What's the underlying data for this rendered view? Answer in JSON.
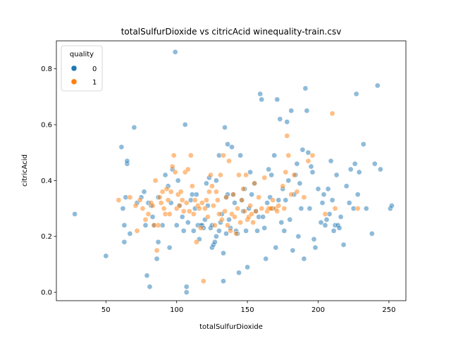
{
  "chart_data": {
    "type": "scatter",
    "title": "totalSulfurDioxide vs citricAcid winequality-train.csv",
    "xlabel": "totalSulfurDioxide",
    "ylabel": "citricAcid",
    "xlim": [
      15,
      262
    ],
    "ylim": [
      -0.03,
      0.9
    ],
    "xticks": [
      50,
      100,
      150,
      200,
      250
    ],
    "yticks": [
      0.0,
      0.2,
      0.4,
      0.6,
      0.8
    ],
    "xtick_labels": [
      "50",
      "100",
      "150",
      "200",
      "250"
    ],
    "ytick_labels": [
      "0.0",
      "0.2",
      "0.4",
      "0.6",
      "0.8"
    ],
    "grid": false,
    "legend": {
      "title": "quality",
      "placement": "top-left",
      "entries": [
        "0",
        "1"
      ]
    },
    "series": [
      {
        "name": "0",
        "color": "#1f77b4",
        "points": [
          [
            28,
            0.28
          ],
          [
            50,
            0.13
          ],
          [
            61,
            0.52
          ],
          [
            62,
            0.3
          ],
          [
            63,
            0.24
          ],
          [
            63,
            0.18
          ],
          [
            64,
            0.34
          ],
          [
            65,
            0.46
          ],
          [
            65,
            0.47
          ],
          [
            67,
            0.21
          ],
          [
            70,
            0.59
          ],
          [
            72,
            0.32
          ],
          [
            75,
            0.34
          ],
          [
            77,
            0.36
          ],
          [
            78,
            0.24
          ],
          [
            79,
            0.06
          ],
          [
            80,
            0.32
          ],
          [
            81,
            0.02
          ],
          [
            82,
            0.31
          ],
          [
            83,
            0.27
          ],
          [
            84,
            0.24
          ],
          [
            86,
            0.12
          ],
          [
            87,
            0.18
          ],
          [
            87,
            0.34
          ],
          [
            90,
            0.24
          ],
          [
            92,
            0.42
          ],
          [
            94,
            0.38
          ],
          [
            95,
            0.16
          ],
          [
            96,
            0.32
          ],
          [
            97,
            0.44
          ],
          [
            99,
            0.86
          ],
          [
            100,
            0.24
          ],
          [
            101,
            0.4
          ],
          [
            102,
            0.31
          ],
          [
            104,
            0.27
          ],
          [
            105,
            0.22
          ],
          [
            106,
            0.6
          ],
          [
            107,
            0.02
          ],
          [
            107,
            0.0
          ],
          [
            108,
            0.25
          ],
          [
            110,
            0.33
          ],
          [
            111,
            0.35
          ],
          [
            112,
            0.22
          ],
          [
            113,
            0.3
          ],
          [
            114,
            0.35
          ],
          [
            115,
            0.24
          ],
          [
            116,
            0.19
          ],
          [
            117,
            0.24
          ],
          [
            118,
            0.24
          ],
          [
            119,
            0.23
          ],
          [
            120,
            0.26
          ],
          [
            121,
            0.39
          ],
          [
            122,
            0.31
          ],
          [
            123,
            0.41
          ],
          [
            124,
            0.23
          ],
          [
            125,
            0.24
          ],
          [
            125,
            0.16
          ],
          [
            126,
            0.17
          ],
          [
            127,
            0.18
          ],
          [
            128,
            0.2
          ],
          [
            128,
            0.4
          ],
          [
            130,
            0.49
          ],
          [
            130,
            0.22
          ],
          [
            131,
            0.25
          ],
          [
            132,
            0.28
          ],
          [
            133,
            0.04
          ],
          [
            133,
            0.14
          ],
          [
            134,
            0.59
          ],
          [
            135,
            0.34
          ],
          [
            135,
            0.21
          ],
          [
            136,
            0.53
          ],
          [
            136,
            0.35
          ],
          [
            137,
            0.26
          ],
          [
            138,
            0.23
          ],
          [
            139,
            0.52
          ],
          [
            140,
            0.35
          ],
          [
            141,
            0.32
          ],
          [
            142,
            0.22
          ],
          [
            143,
            0.21
          ],
          [
            144,
            0.07
          ],
          [
            145,
            0.49
          ],
          [
            146,
            0.33
          ],
          [
            147,
            0.29
          ],
          [
            148,
            0.37
          ],
          [
            149,
            0.22
          ],
          [
            150,
            0.09
          ],
          [
            151,
            0.3
          ],
          [
            152,
            0.43
          ],
          [
            153,
            0.35
          ],
          [
            155,
            0.39
          ],
          [
            156,
            0.29
          ],
          [
            157,
            0.22
          ],
          [
            158,
            0.27
          ],
          [
            159,
            0.71
          ],
          [
            160,
            0.69
          ],
          [
            161,
            0.27
          ],
          [
            162,
            0.23
          ],
          [
            163,
            0.12
          ],
          [
            164,
            0.32
          ],
          [
            165,
            0.44
          ],
          [
            166,
            0.34
          ],
          [
            167,
            0.42
          ],
          [
            168,
            0.3
          ],
          [
            169,
            0.49
          ],
          [
            170,
            0.16
          ],
          [
            171,
            0.69
          ],
          [
            172,
            0.33
          ],
          [
            173,
            0.62
          ],
          [
            174,
            0.25
          ],
          [
            175,
            0.37
          ],
          [
            176,
            0.22
          ],
          [
            177,
            0.33
          ],
          [
            178,
            0.61
          ],
          [
            179,
            0.4
          ],
          [
            180,
            0.26
          ],
          [
            181,
            0.65
          ],
          [
            182,
            0.15
          ],
          [
            183,
            0.35
          ],
          [
            184,
            0.42
          ],
          [
            185,
            0.46
          ],
          [
            186,
            0.2
          ],
          [
            187,
            0.39
          ],
          [
            188,
            0.3
          ],
          [
            189,
            0.51
          ],
          [
            190,
            0.12
          ],
          [
            191,
            0.73
          ],
          [
            192,
            0.65
          ],
          [
            193,
            0.5
          ],
          [
            194,
            0.3
          ],
          [
            195,
            0.45
          ],
          [
            196,
            0.43
          ],
          [
            197,
            0.19
          ],
          [
            198,
            0.16
          ],
          [
            200,
            0.37
          ],
          [
            202,
            0.25
          ],
          [
            203,
            0.32
          ],
          [
            204,
            0.35
          ],
          [
            205,
            0.24
          ],
          [
            206,
            0.26
          ],
          [
            207,
            0.37
          ],
          [
            208,
            0.28
          ],
          [
            209,
            0.47
          ],
          [
            210,
            0.33
          ],
          [
            211,
            0.22
          ],
          [
            212,
            0.24
          ],
          [
            213,
            0.42
          ],
          [
            214,
            0.24
          ],
          [
            215,
            0.23
          ],
          [
            216,
            0.27
          ],
          [
            218,
            0.17
          ],
          [
            220,
            0.38
          ],
          [
            222,
            0.32
          ],
          [
            223,
            0.44
          ],
          [
            225,
            0.3
          ],
          [
            226,
            0.46
          ],
          [
            227,
            0.71
          ],
          [
            228,
            0.35
          ],
          [
            229,
            0.43
          ],
          [
            232,
            0.53
          ],
          [
            234,
            0.3
          ],
          [
            238,
            0.21
          ],
          [
            240,
            0.46
          ],
          [
            242,
            0.74
          ],
          [
            244,
            0.44
          ],
          [
            251,
            0.3
          ],
          [
            252,
            0.31
          ]
        ]
      },
      {
        "name": "1",
        "color": "#ff7f0e",
        "points": [
          [
            59,
            0.33
          ],
          [
            67,
            0.34
          ],
          [
            71,
            0.31
          ],
          [
            72,
            0.22
          ],
          [
            74,
            0.33
          ],
          [
            76,
            0.3
          ],
          [
            78,
            0.26
          ],
          [
            80,
            0.28
          ],
          [
            82,
            0.32
          ],
          [
            83,
            0.31
          ],
          [
            84,
            0.24
          ],
          [
            85,
            0.4
          ],
          [
            86,
            0.15
          ],
          [
            87,
            0.24
          ],
          [
            88,
            0.34
          ],
          [
            89,
            0.32
          ],
          [
            90,
            0.36
          ],
          [
            91,
            0.3
          ],
          [
            92,
            0.28
          ],
          [
            93,
            0.37
          ],
          [
            94,
            0.33
          ],
          [
            95,
            0.28
          ],
          [
            96,
            0.36
          ],
          [
            97,
            0.45
          ],
          [
            98,
            0.49
          ],
          [
            99,
            0.43
          ],
          [
            100,
            0.3
          ],
          [
            101,
            0.35
          ],
          [
            102,
            0.31
          ],
          [
            103,
            0.36
          ],
          [
            104,
            0.33
          ],
          [
            105,
            0.29
          ],
          [
            106,
            0.43
          ],
          [
            107,
            0.32
          ],
          [
            108,
            0.44
          ],
          [
            109,
            0.29
          ],
          [
            110,
            0.49
          ],
          [
            111,
            0.38
          ],
          [
            112,
            0.28
          ],
          [
            113,
            0.33
          ],
          [
            114,
            0.18
          ],
          [
            115,
            0.31
          ],
          [
            116,
            0.3
          ],
          [
            117,
            0.23
          ],
          [
            118,
            0.32
          ],
          [
            119,
            0.04
          ],
          [
            120,
            0.3
          ],
          [
            121,
            0.33
          ],
          [
            122,
            0.27
          ],
          [
            123,
            0.36
          ],
          [
            124,
            0.42
          ],
          [
            125,
            0.38
          ],
          [
            126,
            0.31
          ],
          [
            127,
            0.24
          ],
          [
            128,
            0.36
          ],
          [
            129,
            0.33
          ],
          [
            130,
            0.28
          ],
          [
            131,
            0.42
          ],
          [
            132,
            0.26
          ],
          [
            133,
            0.49
          ],
          [
            134,
            0.29
          ],
          [
            135,
            0.34
          ],
          [
            136,
            0.24
          ],
          [
            137,
            0.47
          ],
          [
            138,
            0.22
          ],
          [
            139,
            0.28
          ],
          [
            140,
            0.35
          ],
          [
            141,
            0.27
          ],
          [
            142,
            0.21
          ],
          [
            143,
            0.3
          ],
          [
            144,
            0.42
          ],
          [
            145,
            0.25
          ],
          [
            146,
            0.33
          ],
          [
            147,
            0.37
          ],
          [
            148,
            0.29
          ],
          [
            149,
            0.42
          ],
          [
            150,
            0.26
          ],
          [
            151,
            0.27
          ],
          [
            152,
            0.31
          ],
          [
            153,
            0.28
          ],
          [
            154,
            0.25
          ],
          [
            155,
            0.39
          ],
          [
            156,
            0.29
          ],
          [
            158,
            0.34
          ],
          [
            160,
            0.3
          ],
          [
            162,
            0.41
          ],
          [
            164,
            0.29
          ],
          [
            165,
            0.3
          ],
          [
            166,
            0.3
          ],
          [
            167,
            0.3
          ],
          [
            168,
            0.33
          ],
          [
            170,
            0.3
          ],
          [
            171,
            0.29
          ],
          [
            172,
            0.31
          ],
          [
            175,
            0.38
          ],
          [
            176,
            0.3
          ],
          [
            177,
            0.43
          ],
          [
            178,
            0.56
          ],
          [
            179,
            0.49
          ],
          [
            181,
            0.35
          ],
          [
            183,
            0.42
          ],
          [
            185,
            0.36
          ],
          [
            190,
            0.34
          ],
          [
            193,
            0.47
          ],
          [
            196,
            0.49
          ],
          [
            205,
            0.28
          ],
          [
            210,
            0.64
          ],
          [
            212,
            0.3
          ],
          [
            228,
            0.3
          ]
        ]
      }
    ]
  }
}
